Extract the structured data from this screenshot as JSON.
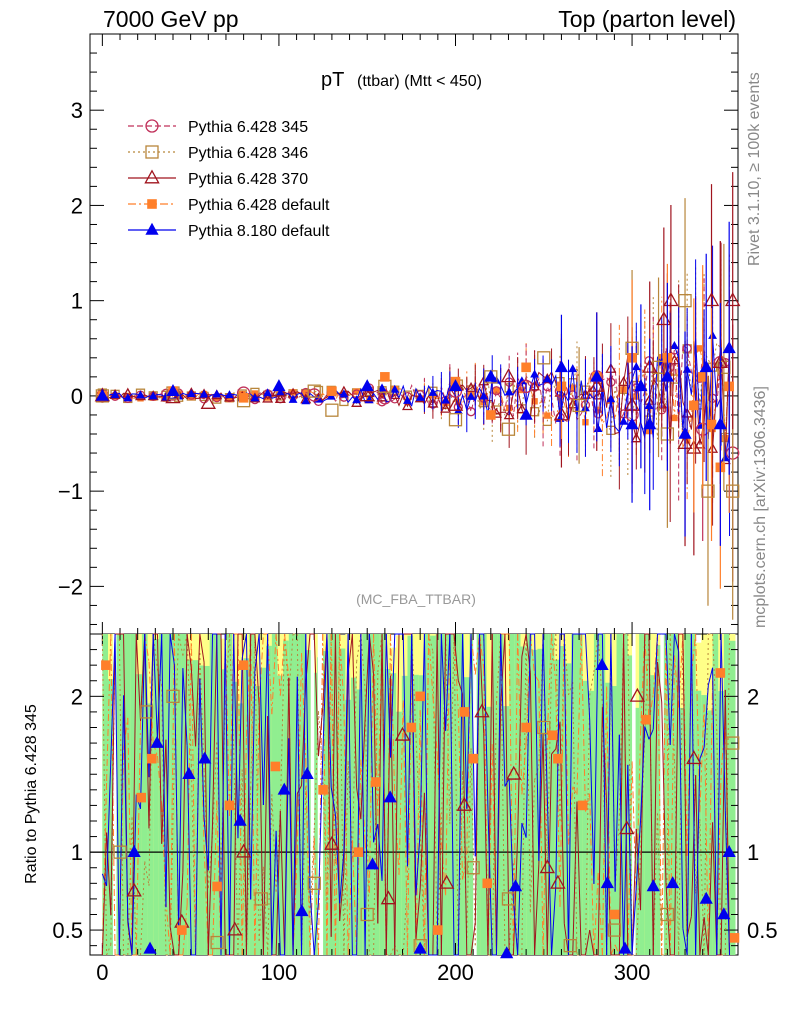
{
  "header": {
    "left": "7000 GeV pp",
    "right": "Top (parton level)"
  },
  "side_labels": {
    "rivet": "Rivet 3.1.10, ≥ 100k events",
    "mcplots": "mcplots.cern.ch [arXiv:1306.3436]"
  },
  "colors": {
    "band_inner": "#90ee90",
    "band_outer": "#ffff88",
    "py6_345": "#c0305a",
    "py6_346": "#b8863b",
    "py6_370": "#a0141e",
    "py6_default": "#ff7f2a",
    "py8_default": "#0000ee"
  },
  "chart_data": [
    {
      "type": "line",
      "title": "pT (ttbar) (Mtt < 450)",
      "title_main": "pT",
      "title_sub": "(ttbar) (Mtt < 450)",
      "watermark": "(MC_FBA_TTBAR)",
      "xlim": [
        -7,
        360
      ],
      "ylim": [
        -2.5,
        3.8
      ],
      "yticks": [
        -2,
        -1,
        0,
        1,
        2,
        3
      ],
      "ytick_labels": [
        "−2",
        "−1",
        "0",
        "1",
        "2",
        "3"
      ],
      "legend_position": "top-left",
      "series": [
        {
          "name": "Pythia 6.428 345",
          "key": "py6_345",
          "marker": "circle-open",
          "dash": "6,3",
          "x": [
            0,
            40,
            80,
            120,
            160,
            200,
            240,
            260,
            280,
            300,
            320,
            340,
            350,
            357
          ],
          "y": [
            0,
            0.02,
            0.03,
            0.01,
            -0.02,
            0.05,
            0.1,
            0.05,
            0.2,
            -0.2,
            0.3,
            -0.35,
            0.35,
            -0.6
          ]
        },
        {
          "name": "Pythia 6.428 346",
          "key": "py6_346",
          "marker": "square-open",
          "dash": "2,3",
          "x": [
            0,
            40,
            80,
            120,
            130,
            160,
            200,
            220,
            230,
            250,
            270,
            300,
            315,
            320,
            330,
            343,
            352,
            357
          ],
          "y": [
            0,
            0.03,
            -0.05,
            0.05,
            -0.15,
            0.1,
            -0.25,
            0.2,
            -0.35,
            0.4,
            -0.1,
            0.5,
            0.3,
            -0.4,
            1.0,
            -1.0,
            0.3,
            -1.0
          ]
        },
        {
          "name": "Pythia 6.428 370",
          "key": "py6_370",
          "marker": "triangle-open",
          "dash": "",
          "x": [
            0,
            40,
            60,
            100,
            150,
            200,
            230,
            260,
            280,
            300,
            310,
            318,
            322,
            330,
            335,
            345,
            350,
            357
          ],
          "y": [
            0,
            -0.02,
            -0.08,
            0.05,
            0,
            -0.1,
            0.2,
            -0.2,
            0.1,
            -0.1,
            0.3,
            0.8,
            1.0,
            -0.5,
            -0.55,
            1.0,
            0.35,
            1.0
          ]
        },
        {
          "name": "Pythia 6.428 default",
          "key": "py6_default",
          "marker": "square-filled",
          "dash": "8,3,2,3",
          "x": [
            0,
            40,
            80,
            130,
            160,
            200,
            220,
            240,
            260,
            280,
            300,
            320,
            335,
            340,
            345,
            350,
            355
          ],
          "y": [
            0,
            0.05,
            -0.02,
            0.05,
            0.2,
            0.15,
            -0.2,
            0.3,
            0.1,
            0.2,
            0.4,
            0.4,
            -0.1,
            0.2,
            -0.3,
            -0.75,
            0.1
          ]
        },
        {
          "name": "Pythia 8.180 default",
          "key": "py8_default",
          "marker": "triangle-filled",
          "dash": "",
          "x": [
            0,
            40,
            100,
            150,
            200,
            220,
            240,
            260,
            280,
            300,
            305,
            310,
            320,
            330,
            342,
            350,
            355
          ],
          "y": [
            0,
            0.05,
            0.1,
            0.1,
            0.1,
            0.2,
            -0.2,
            0.3,
            0.2,
            -0.3,
            0.1,
            -0.3,
            0.2,
            -0.4,
            0.3,
            -0.3,
            0.5
          ]
        }
      ]
    },
    {
      "type": "line",
      "ylabel": "Ratio to Pythia 6.428 345",
      "xlim": [
        -7,
        360
      ],
      "ylim": [
        0.34,
        2.4
      ],
      "yticks": [
        0.5,
        1,
        2
      ],
      "ytick_labels": [
        "0.5",
        "1",
        "2"
      ],
      "xticks": [
        0,
        100,
        200,
        300
      ],
      "xtick_labels": [
        "0",
        "100",
        "200",
        "300"
      ],
      "reference_line": 1,
      "series": [
        {
          "key": "py6_346",
          "marker": "square-open",
          "x": [
            10,
            25,
            40,
            65,
            90,
            120,
            150,
            180,
            210,
            230,
            250,
            265,
            290,
            320,
            357
          ],
          "y": [
            1.0,
            1.9,
            2.0,
            0.42,
            0.7,
            0.8,
            0.6,
            0.4,
            0.9,
            0.7,
            1.8,
            0.4,
            0.5,
            0.6,
            1.7
          ]
        },
        {
          "name": "Pythia 6.428 370",
          "key": "py6_370",
          "marker": "triangle-open",
          "x": [
            18,
            45,
            75,
            80,
            130,
            162,
            170,
            195,
            205,
            215,
            233,
            252,
            258,
            297,
            303,
            335
          ],
          "y": [
            0.75,
            0.55,
            0.5,
            1.0,
            1.05,
            0.7,
            1.75,
            0.8,
            1.3,
            1.9,
            1.5,
            0.9,
            0.8,
            1.15,
            2.0,
            1.6
          ]
        },
        {
          "key": "py6_default",
          "marker": "square-filled",
          "x": [
            2,
            22,
            28,
            45,
            65,
            72,
            80,
            98,
            125,
            145,
            155,
            175,
            180,
            190,
            205,
            210,
            218,
            240,
            255,
            258,
            272,
            290,
            308,
            350,
            358
          ],
          "y": [
            2.2,
            1.35,
            1.6,
            0.5,
            0.78,
            1.3,
            2.2,
            1.55,
            1.4,
            1.0,
            1.45,
            1.8,
            2.0,
            0.5,
            1.9,
            1.6,
            0.8,
            1.8,
            1.75,
            1.6,
            1.3,
            0.6,
            1.85,
            2.15,
            0.45
          ]
        },
        {
          "key": "py8_default",
          "marker": "triangle-filled",
          "x": [
            18,
            27,
            31,
            49,
            58,
            78,
            103,
            113,
            116,
            153,
            163,
            180,
            229,
            234,
            283,
            286,
            296,
            312,
            323,
            342,
            352,
            355
          ],
          "y": [
            1.0,
            0.38,
            1.7,
            1.5,
            1.6,
            1.2,
            1.4,
            0.62,
            1.5,
            0.92,
            1.35,
            0.38,
            0.35,
            0.78,
            2.2,
            0.8,
            0.38,
            0.78,
            0.8,
            0.7,
            0.6,
            1.0
          ]
        }
      ]
    }
  ]
}
